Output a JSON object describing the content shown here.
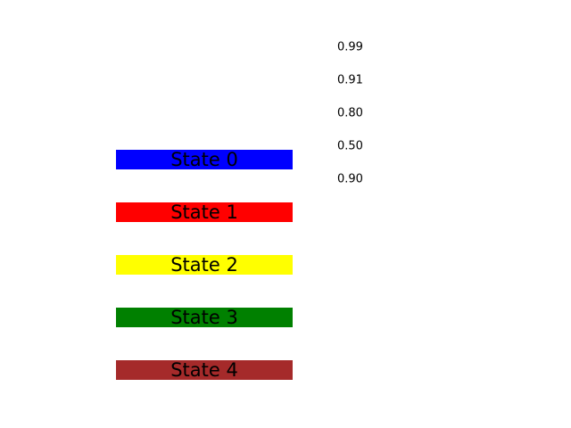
{
  "chart_data": {
    "type": "table",
    "title": "",
    "states": [
      {
        "label": "State 0",
        "color": "#0000ff"
      },
      {
        "label": "State 1",
        "color": "#ff0000"
      },
      {
        "label": "State 2",
        "color": "#ffff00"
      },
      {
        "label": "State 3",
        "color": "#008000"
      },
      {
        "label": "State 4",
        "color": "#a52a2a"
      }
    ],
    "values": [
      "0.99",
      "0.91",
      "0.80",
      "0.50",
      "0.90"
    ],
    "grid": false,
    "legend": "none"
  }
}
